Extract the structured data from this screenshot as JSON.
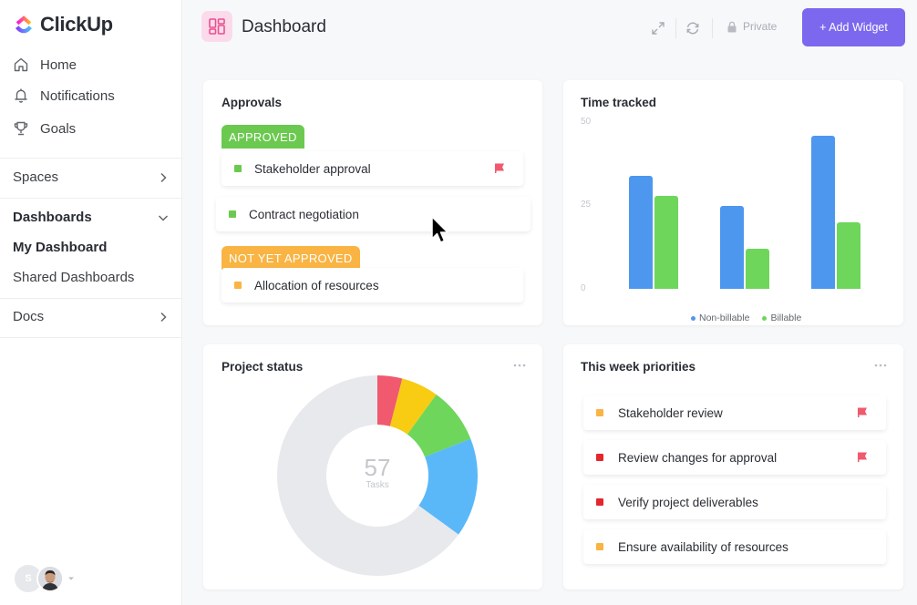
{
  "app": {
    "name": "ClickUp"
  },
  "sidebar": {
    "nav": [
      {
        "label": "Home",
        "icon": "home-icon"
      },
      {
        "label": "Notifications",
        "icon": "bell-icon"
      },
      {
        "label": "Goals",
        "icon": "trophy-icon"
      }
    ],
    "spaces_label": "Spaces",
    "dashboards_label": "Dashboards",
    "dashboards_items": [
      "My Dashboard",
      "Shared Dashboards"
    ],
    "docs_label": "Docs",
    "user_initial": "S"
  },
  "header": {
    "title": "Dashboard",
    "private_label": "Private",
    "add_widget_label": "+ Add Widget"
  },
  "approvals": {
    "title": "Approvals",
    "groups": [
      {
        "status": "APPROVED",
        "color": "#6bc950",
        "items": [
          {
            "label": "Stakeholder approval",
            "square_color": "#6bc950",
            "flag": true
          }
        ]
      },
      {
        "status": "",
        "items": [
          {
            "label": "Contract negotiation",
            "square_color": "#6bc950",
            "flag": false
          }
        ]
      },
      {
        "status": "NOT YET APPROVED",
        "color": "#f9b443",
        "items": [
          {
            "label": "Allocation of resources",
            "square_color": "#f9b443",
            "flag": false
          }
        ]
      }
    ]
  },
  "time_tracked": {
    "title": "Time tracked",
    "chart_data": {
      "type": "bar",
      "categories": [
        "",
        "",
        ""
      ],
      "series": [
        {
          "name": "Non-billable",
          "color": "#4e97ef",
          "values": [
            34,
            25,
            46
          ]
        },
        {
          "name": "Billable",
          "color": "#6dd65b",
          "values": [
            28,
            12,
            20
          ]
        }
      ],
      "yticks": [
        "50",
        "25",
        "0"
      ],
      "ylim": [
        0,
        50
      ],
      "legend": "bottom"
    }
  },
  "project_status": {
    "title": "Project status",
    "center_value": "57",
    "center_label": "Tasks",
    "chart_data": {
      "type": "pie",
      "slices": [
        {
          "value": 4,
          "color": "#f0596e"
        },
        {
          "value": 6,
          "color": "#f7cc12"
        },
        {
          "value": 9,
          "color": "#6dd65b"
        },
        {
          "value": 16,
          "color": "#5ab8f8"
        },
        {
          "value": 65,
          "color": "#e8e9ec"
        }
      ]
    }
  },
  "priorities": {
    "title": "This week priorities",
    "items": [
      {
        "label": "Stakeholder review",
        "square_color": "#f9b443",
        "flag": true
      },
      {
        "label": "Review changes for approval",
        "square_color": "#e5262d",
        "flag": true
      },
      {
        "label": "Verify project deliverables",
        "square_color": "#e5262d",
        "flag": false
      },
      {
        "label": "Ensure availability of resources",
        "square_color": "#f9b443",
        "flag": false
      }
    ]
  }
}
